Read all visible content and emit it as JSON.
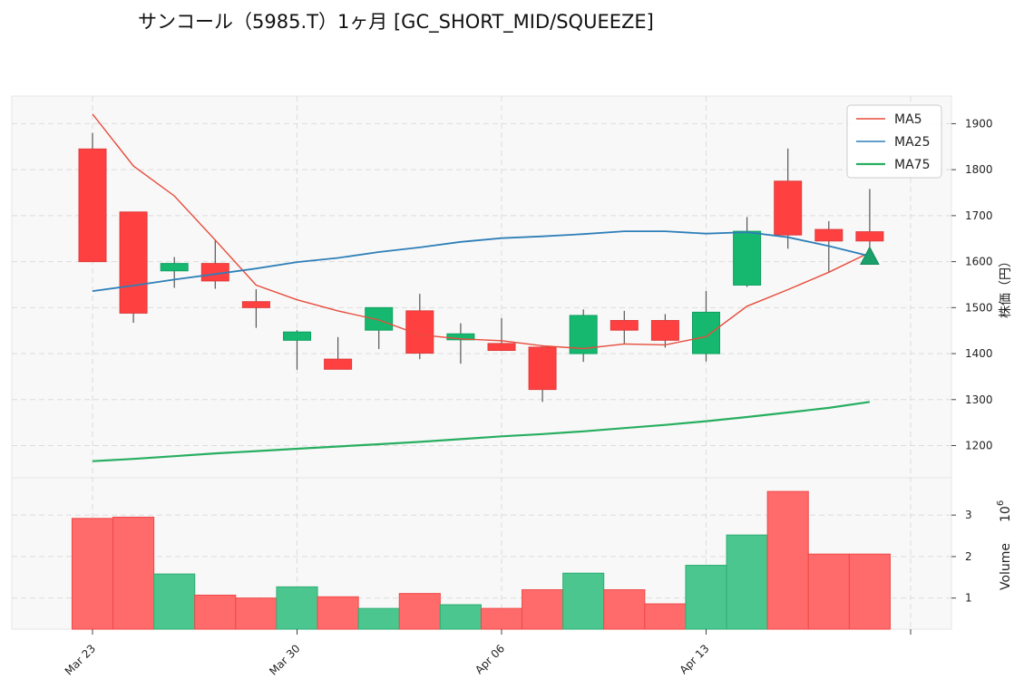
{
  "title": "サンコール（5985.T）1ヶ月 [GC_SHORT_MID/SQUEEZE]",
  "chart_data": {
    "type": "candlestick",
    "x_tick_labels": [
      "Mar 23",
      "Mar 30",
      "Apr 06",
      "Apr 13"
    ],
    "ylabel_price": "株価（円）",
    "ylabel_volume": "Volume",
    "volume_exponent": "6",
    "price_yticks": [
      1200,
      1300,
      1400,
      1500,
      1600,
      1700,
      1800,
      1900
    ],
    "price_ylim": [
      1130,
      1960
    ],
    "volume_yticks": [
      1,
      2,
      3
    ],
    "volume_ylim": [
      0.25,
      3.9
    ],
    "grid": true,
    "legend_position": "top-right",
    "legend": [
      {
        "name": "MA5",
        "color": "#e74c3c"
      },
      {
        "name": "MA25",
        "color": "#2e7fb8"
      },
      {
        "name": "MA75",
        "color": "#27ae60"
      }
    ],
    "colors": {
      "up": "#16b870",
      "down": "#ff4040",
      "wick": "#555555",
      "marker": "#1aa06a"
    },
    "candles": [
      {
        "date": "2026-03-23",
        "open": 1845,
        "high": 1880,
        "low": 1600,
        "close": 1600,
        "volume": 2.92
      },
      {
        "date": "2026-03-24",
        "open": 1708,
        "high": 1708,
        "low": 1467,
        "close": 1488,
        "volume": 2.95
      },
      {
        "date": "2026-03-25",
        "open": 1580,
        "high": 1610,
        "low": 1543,
        "close": 1596,
        "volume": 1.58
      },
      {
        "date": "2026-03-26",
        "open": 1596,
        "high": 1648,
        "low": 1541,
        "close": 1558,
        "volume": 1.07
      },
      {
        "date": "2026-03-27",
        "open": 1513,
        "high": 1540,
        "low": 1456,
        "close": 1500,
        "volume": 1.0
      },
      {
        "date": "2026-03-30",
        "open": 1429,
        "high": 1451,
        "low": 1365,
        "close": 1447,
        "volume": 1.27
      },
      {
        "date": "2026-03-31",
        "open": 1388,
        "high": 1436,
        "low": 1366,
        "close": 1366,
        "volume": 1.03
      },
      {
        "date": "2026-04-01",
        "open": 1451,
        "high": 1500,
        "low": 1410,
        "close": 1500,
        "volume": 0.75
      },
      {
        "date": "2026-04-02",
        "open": 1493,
        "high": 1530,
        "low": 1388,
        "close": 1401,
        "volume": 1.11
      },
      {
        "date": "2026-04-03",
        "open": 1430,
        "high": 1466,
        "low": 1378,
        "close": 1443,
        "volume": 0.84
      },
      {
        "date": "2026-04-06",
        "open": 1422,
        "high": 1477,
        "low": 1407,
        "close": 1407,
        "volume": 0.75
      },
      {
        "date": "2026-04-07",
        "open": 1414,
        "high": 1418,
        "low": 1295,
        "close": 1322,
        "volume": 1.2
      },
      {
        "date": "2026-04-08",
        "open": 1400,
        "high": 1496,
        "low": 1382,
        "close": 1483,
        "volume": 1.6
      },
      {
        "date": "2026-04-09",
        "open": 1472,
        "high": 1493,
        "low": 1421,
        "close": 1451,
        "volume": 1.2
      },
      {
        "date": "2026-04-10",
        "open": 1472,
        "high": 1486,
        "low": 1413,
        "close": 1429,
        "volume": 0.86
      },
      {
        "date": "2026-04-13",
        "open": 1400,
        "high": 1536,
        "low": 1383,
        "close": 1490,
        "volume": 1.79
      },
      {
        "date": "2026-04-14",
        "open": 1549,
        "high": 1697,
        "low": 1545,
        "close": 1666,
        "volume": 2.52
      },
      {
        "date": "2026-04-15",
        "open": 1775,
        "high": 1846,
        "low": 1628,
        "close": 1658,
        "volume": 3.57
      },
      {
        "date": "2026-04-16",
        "open": 1670,
        "high": 1688,
        "low": 1578,
        "close": 1645,
        "volume": 2.06
      },
      {
        "date": "2026-04-17",
        "open": 1665,
        "high": 1758,
        "low": 1614,
        "close": 1645,
        "volume": 2.06
      }
    ],
    "series": [
      {
        "name": "MA5",
        "values": [
          1921,
          1808,
          1743,
          1647,
          1549,
          1517,
          1493,
          1473,
          1441,
          1432,
          1428,
          1417,
          1411,
          1421,
          1419,
          1437,
          1503,
          1539,
          1577,
          1620
        ]
      },
      {
        "name": "MA25",
        "values": [
          1536,
          1548,
          1561,
          1573,
          1585,
          1599,
          1608,
          1621,
          1631,
          1643,
          1651,
          1655,
          1660,
          1666,
          1666,
          1661,
          1664,
          1653,
          1634,
          1612
        ]
      },
      {
        "name": "MA75",
        "values": [
          1166,
          1171,
          1177,
          1183,
          1188,
          1193,
          1198,
          1203,
          1208,
          1214,
          1220,
          1225,
          1231,
          1238,
          1245,
          1253,
          1262,
          1272,
          1282,
          1295
        ]
      }
    ],
    "signal_marker": {
      "index": 19,
      "price": 1612,
      "shape": "triangle-up"
    }
  }
}
